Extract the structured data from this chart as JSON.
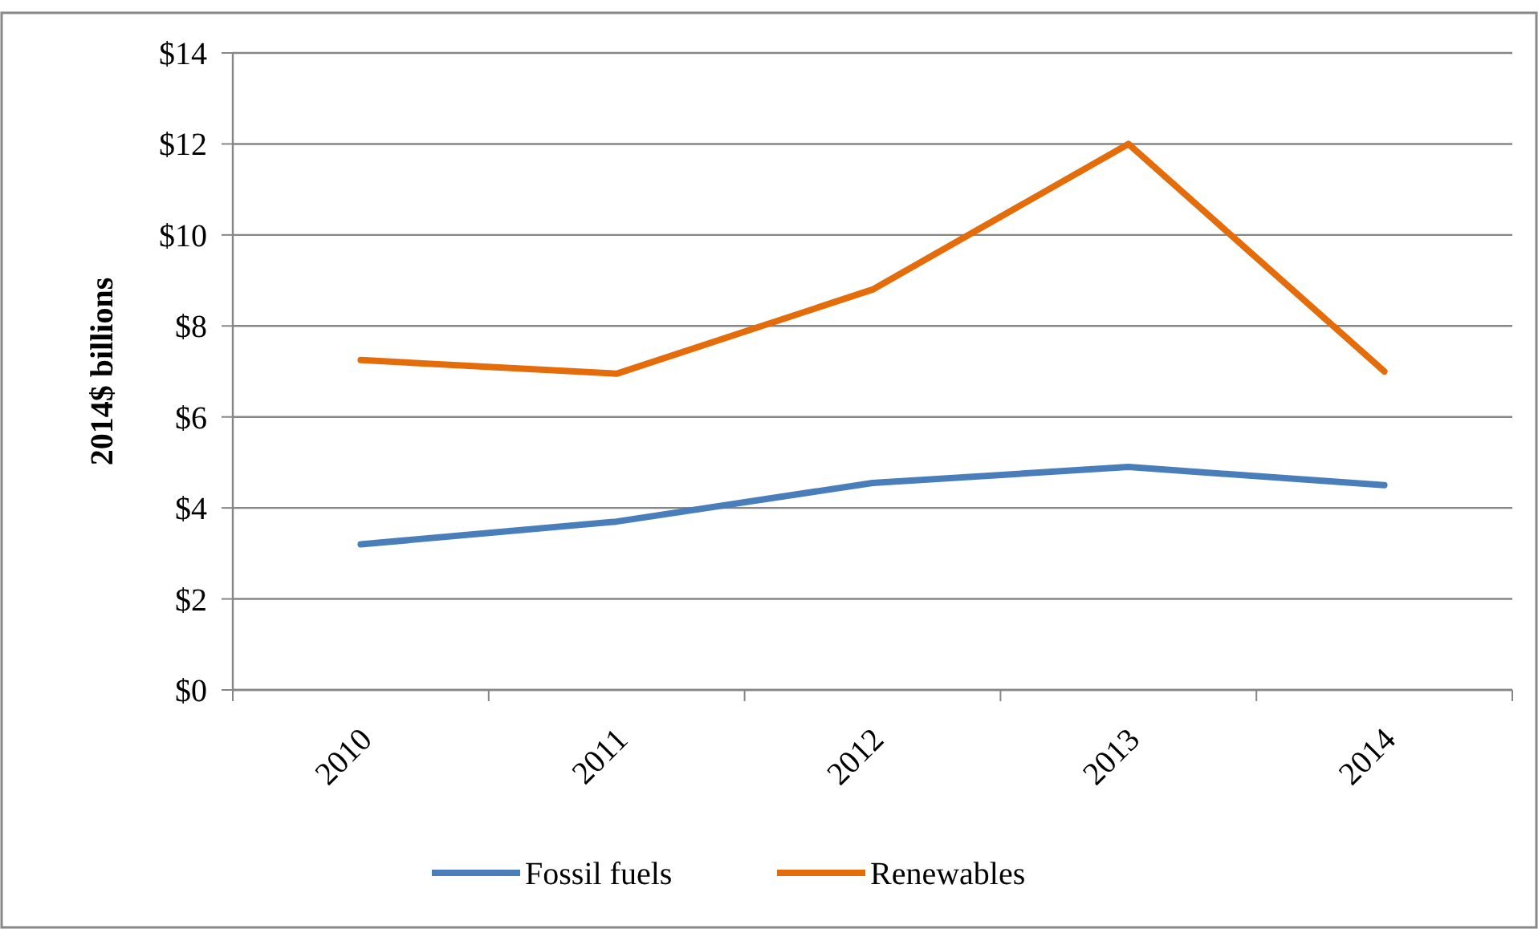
{
  "chart_data": {
    "type": "line",
    "ylabel": "2014$ billions",
    "categories": [
      "2010",
      "2011",
      "2012",
      "2013",
      "2014"
    ],
    "series": [
      {
        "name": "Fossil fuels",
        "color": "#4a7ebb",
        "values": [
          3.2,
          3.7,
          4.55,
          4.9,
          4.5
        ]
      },
      {
        "name": "Renewables",
        "color": "#e46c0a",
        "values": [
          7.25,
          6.95,
          8.8,
          12,
          7
        ]
      }
    ],
    "ylim": [
      0,
      14
    ],
    "yticks": [
      {
        "value": 0,
        "label": "$0"
      },
      {
        "value": 2,
        "label": "$2"
      },
      {
        "value": 4,
        "label": "$4"
      },
      {
        "value": 6,
        "label": "$6"
      },
      {
        "value": 8,
        "label": "$8"
      },
      {
        "value": 10,
        "label": "$10"
      },
      {
        "value": 12,
        "label": "$12"
      },
      {
        "value": 14,
        "label": "$14"
      }
    ],
    "grid": "y",
    "legend": "bottom",
    "marker": "none",
    "line_style": "solid"
  }
}
